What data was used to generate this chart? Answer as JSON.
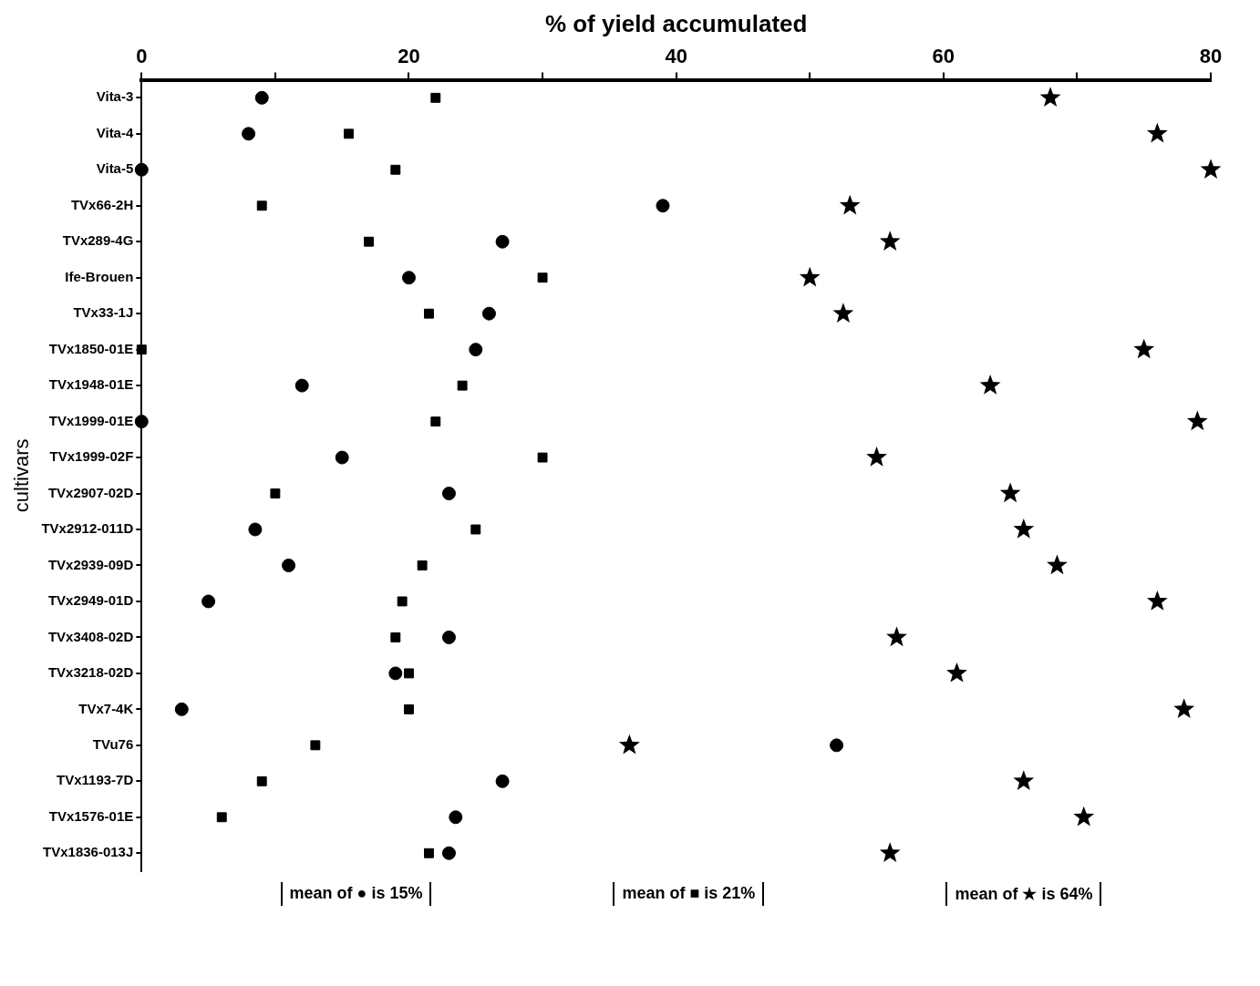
{
  "chart_data": {
    "type": "scatter",
    "orientation": "horizontal",
    "xlabel": "% of yield accumulated",
    "ylabel": "cultivars",
    "categories": [
      "Vita-3",
      "Vita-4",
      "Vita-5",
      "TVx66-2H",
      "TVx289-4G",
      "Ife-Brouen",
      "TVx33-1J",
      "TVx1850-01E",
      "TVx1948-01E",
      "TVx1999-01E",
      "TVx1999-02F",
      "TVx2907-02D",
      "TVx2912-011D",
      "TVx2939-09D",
      "TVx2949-01D",
      "TVx3408-02D",
      "TVx3218-02D",
      "TVx7-4K",
      "TVu76",
      "TVx1193-7D",
      "TVx1576-01E",
      "TVx1836-013J"
    ],
    "series": [
      {
        "color": "#000000",
        "marker": "circle",
        "values": [
          9,
          8,
          0,
          39,
          27,
          20,
          26,
          25,
          12,
          0,
          15,
          23,
          8.5,
          11,
          5,
          23,
          19,
          3,
          52,
          27,
          23.5,
          23
        ]
      },
      {
        "color": "#000000",
        "marker": "square",
        "values": [
          22,
          15.5,
          19,
          9,
          17,
          30,
          21.5,
          0,
          24,
          22,
          30,
          10,
          25,
          21,
          19.5,
          19,
          20,
          20,
          13,
          9,
          6,
          21.5
        ]
      },
      {
        "color": "#000000",
        "marker": "star",
        "values": [
          68,
          76,
          80,
          53,
          56,
          50,
          52.5,
          75,
          63.5,
          79,
          55,
          65,
          66,
          68.5,
          76,
          56.5,
          61,
          78,
          36.5,
          66,
          70.5,
          56
        ]
      }
    ],
    "xlim": [
      0,
      80
    ],
    "xticks": [
      0,
      {
        "value": 10,
        "label": null
      },
      20,
      {
        "value": 30,
        "label": null
      },
      40,
      {
        "value": 50,
        "label": null
      },
      60,
      {
        "value": 70,
        "label": null
      },
      80
    ],
    "grid": false,
    "legend": false,
    "annotations": [
      "mean of ● is 15%",
      "mean of ■ is 21%",
      "mean of ★ is 64%"
    ]
  }
}
